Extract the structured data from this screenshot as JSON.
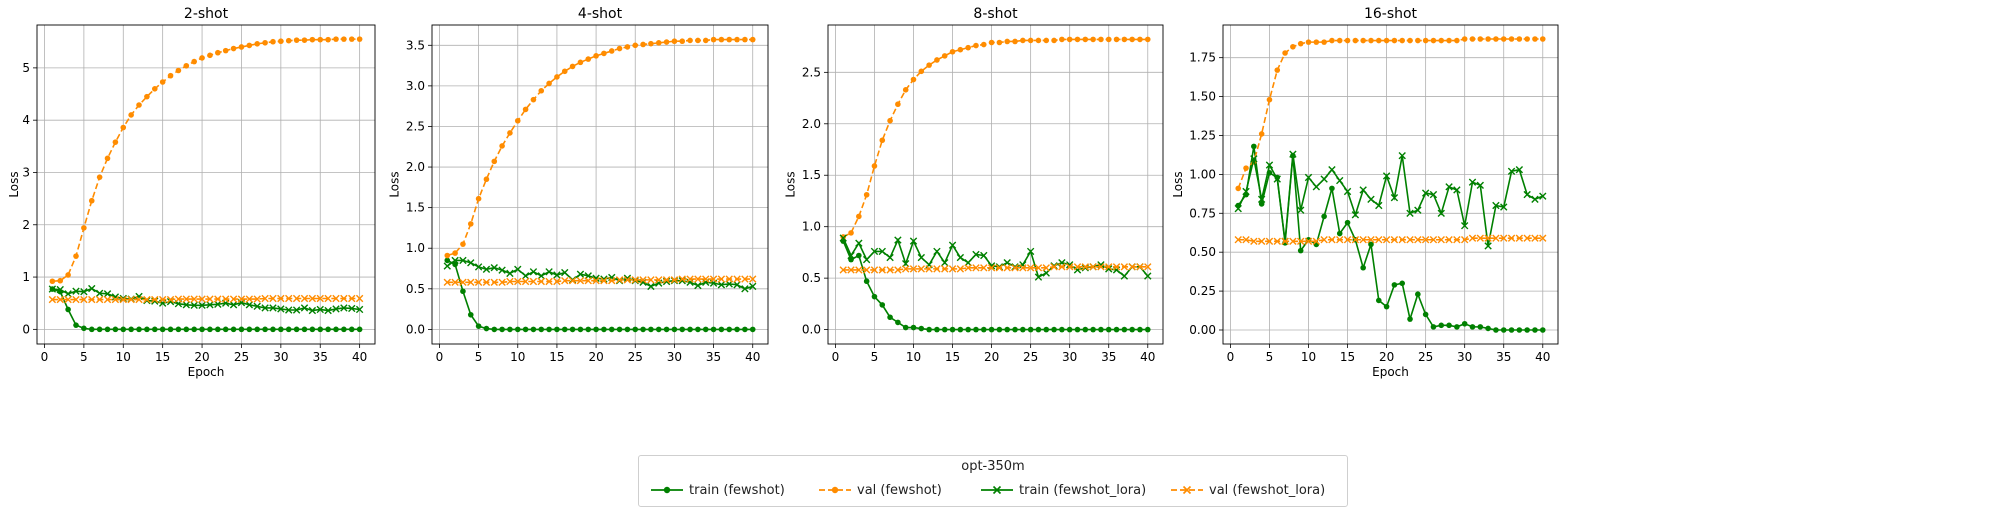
{
  "legend": {
    "title": "opt-350m",
    "entries": [
      {
        "label": "train (fewshot)",
        "color": "#008000",
        "style": "solid",
        "marker": "circle"
      },
      {
        "label": "val (fewshot)",
        "color": "#ff8c00",
        "style": "dashed",
        "marker": "circle"
      },
      {
        "label": "train (fewshot_lora)",
        "color": "#008000",
        "style": "solid",
        "marker": "x"
      },
      {
        "label": "val (fewshot_lora)",
        "color": "#ff8c00",
        "style": "dashed",
        "marker": "x"
      }
    ],
    "placement": "bottom-center"
  },
  "chart_data": [
    {
      "type": "line",
      "title": "2-shot",
      "xlabel": "Epoch",
      "ylabel": "Loss",
      "xlim": [
        -0.95,
        41.95
      ],
      "ylim": [
        -0.28,
        5.82
      ],
      "xticks": [
        0,
        5,
        10,
        15,
        20,
        25,
        30,
        35,
        40
      ],
      "yticks": [
        0,
        1,
        2,
        3,
        4,
        5
      ],
      "grid": true,
      "x": [
        1,
        2,
        3,
        4,
        5,
        6,
        7,
        8,
        9,
        10,
        11,
        12,
        13,
        14,
        15,
        16,
        17,
        18,
        19,
        20,
        21,
        22,
        23,
        24,
        25,
        26,
        27,
        28,
        29,
        30,
        31,
        32,
        33,
        34,
        35,
        36,
        37,
        38,
        39,
        40
      ],
      "series": [
        {
          "name": "train (fewshot)",
          "values": [
            0.77,
            0.72,
            0.38,
            0.08,
            0.02,
            0,
            0,
            0,
            0,
            0,
            0,
            0,
            0,
            0,
            0,
            0,
            0,
            0,
            0,
            0,
            0,
            0,
            0,
            0,
            0,
            0,
            0,
            0,
            0,
            0,
            0,
            0,
            0,
            0,
            0,
            0,
            0,
            0,
            0,
            0
          ]
        },
        {
          "name": "val (fewshot)",
          "values": [
            0.92,
            0.93,
            1.04,
            1.4,
            1.94,
            2.46,
            2.91,
            3.27,
            3.58,
            3.86,
            4.1,
            4.29,
            4.45,
            4.6,
            4.73,
            4.85,
            4.95,
            5.04,
            5.12,
            5.19,
            5.24,
            5.29,
            5.33,
            5.37,
            5.4,
            5.43,
            5.46,
            5.48,
            5.5,
            5.51,
            5.52,
            5.53,
            5.53,
            5.54,
            5.54,
            5.54,
            5.55,
            5.55,
            5.55,
            5.55
          ]
        },
        {
          "name": "train (fewshot_lora)",
          "values": [
            0.77,
            0.76,
            0.68,
            0.73,
            0.72,
            0.78,
            0.69,
            0.68,
            0.62,
            0.59,
            0.58,
            0.63,
            0.55,
            0.54,
            0.5,
            0.53,
            0.49,
            0.47,
            0.46,
            0.46,
            0.47,
            0.48,
            0.5,
            0.47,
            0.51,
            0.47,
            0.44,
            0.41,
            0.41,
            0.39,
            0.37,
            0.37,
            0.41,
            0.36,
            0.38,
            0.36,
            0.39,
            0.41,
            0.4,
            0.38
          ]
        },
        {
          "name": "val (fewshot_lora)",
          "values": [
            0.57,
            0.57,
            0.57,
            0.57,
            0.57,
            0.57,
            0.57,
            0.57,
            0.57,
            0.57,
            0.57,
            0.57,
            0.57,
            0.57,
            0.57,
            0.57,
            0.58,
            0.58,
            0.58,
            0.58,
            0.58,
            0.58,
            0.58,
            0.58,
            0.58,
            0.58,
            0.58,
            0.59,
            0.59,
            0.59,
            0.59,
            0.59,
            0.59,
            0.59,
            0.59,
            0.59,
            0.59,
            0.59,
            0.59,
            0.59
          ]
        }
      ]
    },
    {
      "type": "line",
      "title": "4-shot",
      "xlabel": "",
      "ylabel": "Loss",
      "xlim": [
        -0.95,
        41.95
      ],
      "ylim": [
        -0.18,
        3.75
      ],
      "xticks": [
        0,
        5,
        10,
        15,
        20,
        25,
        30,
        35,
        40
      ],
      "yticks": [
        0.0,
        0.5,
        1.0,
        1.5,
        2.0,
        2.5,
        3.0,
        3.5
      ],
      "grid": true,
      "x": [
        1,
        2,
        3,
        4,
        5,
        6,
        7,
        8,
        9,
        10,
        11,
        12,
        13,
        14,
        15,
        16,
        17,
        18,
        19,
        20,
        21,
        22,
        23,
        24,
        25,
        26,
        27,
        28,
        29,
        30,
        31,
        32,
        33,
        34,
        35,
        36,
        37,
        38,
        39,
        40
      ],
      "series": [
        {
          "name": "train (fewshot)",
          "values": [
            0.85,
            0.8,
            0.47,
            0.18,
            0.04,
            0.01,
            0,
            0,
            0,
            0,
            0,
            0,
            0,
            0,
            0,
            0,
            0,
            0,
            0,
            0,
            0,
            0,
            0,
            0,
            0,
            0,
            0,
            0,
            0,
            0,
            0,
            0,
            0,
            0,
            0,
            0,
            0,
            0,
            0,
            0
          ]
        },
        {
          "name": "val (fewshot)",
          "values": [
            0.91,
            0.94,
            1.05,
            1.3,
            1.61,
            1.85,
            2.07,
            2.26,
            2.42,
            2.57,
            2.71,
            2.83,
            2.94,
            3.03,
            3.11,
            3.18,
            3.24,
            3.29,
            3.33,
            3.37,
            3.4,
            3.43,
            3.46,
            3.48,
            3.5,
            3.51,
            3.52,
            3.53,
            3.54,
            3.55,
            3.55,
            3.56,
            3.56,
            3.56,
            3.57,
            3.57,
            3.57,
            3.57,
            3.57,
            3.57
          ]
        },
        {
          "name": "train (fewshot_lora)",
          "values": [
            0.78,
            0.85,
            0.85,
            0.82,
            0.77,
            0.74,
            0.76,
            0.73,
            0.69,
            0.74,
            0.66,
            0.71,
            0.66,
            0.71,
            0.67,
            0.7,
            0.61,
            0.68,
            0.66,
            0.63,
            0.62,
            0.64,
            0.6,
            0.63,
            0.6,
            0.58,
            0.53,
            0.57,
            0.59,
            0.6,
            0.6,
            0.58,
            0.54,
            0.58,
            0.57,
            0.55,
            0.56,
            0.55,
            0.5,
            0.53
          ]
        },
        {
          "name": "val (fewshot_lora)",
          "values": [
            0.58,
            0.58,
            0.58,
            0.58,
            0.58,
            0.58,
            0.58,
            0.58,
            0.59,
            0.59,
            0.59,
            0.59,
            0.59,
            0.59,
            0.59,
            0.6,
            0.6,
            0.6,
            0.6,
            0.6,
            0.6,
            0.6,
            0.61,
            0.61,
            0.61,
            0.61,
            0.61,
            0.61,
            0.61,
            0.61,
            0.62,
            0.62,
            0.62,
            0.62,
            0.62,
            0.62,
            0.62,
            0.62,
            0.62,
            0.62
          ]
        }
      ]
    },
    {
      "type": "line",
      "title": "8-shot",
      "xlabel": "",
      "ylabel": "Loss",
      "xlim": [
        -0.95,
        41.95
      ],
      "ylim": [
        -0.14,
        2.96
      ],
      "xticks": [
        0,
        5,
        10,
        15,
        20,
        25,
        30,
        35,
        40
      ],
      "yticks": [
        0.0,
        0.5,
        1.0,
        1.5,
        2.0,
        2.5
      ],
      "grid": true,
      "x": [
        1,
        2,
        3,
        4,
        5,
        6,
        7,
        8,
        9,
        10,
        11,
        12,
        13,
        14,
        15,
        16,
        17,
        18,
        19,
        20,
        21,
        22,
        23,
        24,
        25,
        26,
        27,
        28,
        29,
        30,
        31,
        32,
        33,
        34,
        35,
        36,
        37,
        38,
        39,
        40
      ],
      "series": [
        {
          "name": "train (fewshot)",
          "values": [
            0.86,
            0.68,
            0.72,
            0.47,
            0.32,
            0.24,
            0.12,
            0.07,
            0.02,
            0.02,
            0.01,
            0,
            0,
            0,
            0,
            0,
            0,
            0,
            0,
            0,
            0,
            0,
            0,
            0,
            0,
            0,
            0,
            0,
            0,
            0,
            0,
            0,
            0,
            0,
            0,
            0,
            0,
            0,
            0,
            0
          ]
        },
        {
          "name": "val (fewshot)",
          "values": [
            0.9,
            0.94,
            1.1,
            1.31,
            1.59,
            1.84,
            2.03,
            2.19,
            2.33,
            2.43,
            2.51,
            2.57,
            2.62,
            2.66,
            2.7,
            2.72,
            2.74,
            2.76,
            2.77,
            2.79,
            2.79,
            2.8,
            2.8,
            2.81,
            2.81,
            2.81,
            2.81,
            2.81,
            2.82,
            2.82,
            2.82,
            2.82,
            2.82,
            2.82,
            2.82,
            2.82,
            2.82,
            2.82,
            2.82,
            2.82
          ]
        },
        {
          "name": "train (fewshot_lora)",
          "values": [
            0.89,
            0.72,
            0.84,
            0.68,
            0.76,
            0.76,
            0.7,
            0.87,
            0.64,
            0.86,
            0.7,
            0.63,
            0.76,
            0.65,
            0.82,
            0.7,
            0.65,
            0.73,
            0.72,
            0.62,
            0.61,
            0.65,
            0.61,
            0.63,
            0.76,
            0.51,
            0.55,
            0.62,
            0.65,
            0.63,
            0.58,
            0.6,
            0.61,
            0.63,
            0.59,
            0.58,
            0.52,
            0.61,
            0.61,
            0.52
          ]
        },
        {
          "name": "val (fewshot_lora)",
          "values": [
            0.58,
            0.58,
            0.58,
            0.58,
            0.58,
            0.58,
            0.58,
            0.58,
            0.59,
            0.59,
            0.59,
            0.59,
            0.59,
            0.59,
            0.59,
            0.59,
            0.6,
            0.6,
            0.6,
            0.6,
            0.6,
            0.6,
            0.6,
            0.6,
            0.6,
            0.6,
            0.6,
            0.61,
            0.61,
            0.61,
            0.61,
            0.61,
            0.61,
            0.61,
            0.61,
            0.61,
            0.61,
            0.61,
            0.61,
            0.61
          ]
        }
      ]
    },
    {
      "type": "line",
      "title": "16-shot",
      "xlabel": "Epoch",
      "ylabel": "Loss",
      "xlim": [
        -0.95,
        41.95
      ],
      "ylim": [
        -0.09,
        1.96
      ],
      "xticks": [
        0,
        5,
        10,
        15,
        20,
        25,
        30,
        35,
        40
      ],
      "yticks": [
        0.0,
        0.25,
        0.5,
        0.75,
        1.0,
        1.25,
        1.5,
        1.75
      ],
      "grid": true,
      "x": [
        1,
        2,
        3,
        4,
        5,
        6,
        7,
        8,
        9,
        10,
        11,
        12,
        13,
        14,
        15,
        16,
        17,
        18,
        19,
        20,
        21,
        22,
        23,
        24,
        25,
        26,
        27,
        28,
        29,
        30,
        31,
        32,
        33,
        34,
        35,
        36,
        37,
        38,
        39,
        40
      ],
      "series": [
        {
          "name": "train (fewshot)",
          "values": [
            0.8,
            0.87,
            1.18,
            0.81,
            1.01,
            0.98,
            0.56,
            1.12,
            0.51,
            0.58,
            0.55,
            0.73,
            0.91,
            0.62,
            0.69,
            0.58,
            0.4,
            0.55,
            0.19,
            0.15,
            0.29,
            0.3,
            0.07,
            0.23,
            0.1,
            0.02,
            0.03,
            0.03,
            0.02,
            0.04,
            0.02,
            0.02,
            0.01,
            0,
            0,
            0,
            0,
            0,
            0,
            0
          ]
        },
        {
          "name": "val (fewshot)",
          "values": [
            0.91,
            1.04,
            1.08,
            1.26,
            1.48,
            1.67,
            1.78,
            1.82,
            1.84,
            1.85,
            1.85,
            1.85,
            1.86,
            1.86,
            1.86,
            1.86,
            1.86,
            1.86,
            1.86,
            1.86,
            1.86,
            1.86,
            1.86,
            1.86,
            1.86,
            1.86,
            1.86,
            1.86,
            1.86,
            1.87,
            1.87,
            1.87,
            1.87,
            1.87,
            1.87,
            1.87,
            1.87,
            1.87,
            1.87,
            1.87
          ]
        },
        {
          "name": "train (fewshot_lora)",
          "values": [
            0.78,
            0.89,
            1.1,
            0.84,
            1.06,
            0.97,
            0.57,
            1.13,
            0.77,
            0.98,
            0.92,
            0.97,
            1.03,
            0.96,
            0.89,
            0.74,
            0.9,
            0.84,
            0.8,
            0.99,
            0.85,
            1.12,
            0.75,
            0.77,
            0.88,
            0.87,
            0.75,
            0.92,
            0.9,
            0.67,
            0.95,
            0.93,
            0.54,
            0.8,
            0.79,
            1.02,
            1.03,
            0.87,
            0.84,
            0.86
          ]
        },
        {
          "name": "val (fewshot_lora)",
          "values": [
            0.58,
            0.58,
            0.57,
            0.57,
            0.57,
            0.57,
            0.57,
            0.57,
            0.57,
            0.57,
            0.57,
            0.58,
            0.58,
            0.58,
            0.58,
            0.58,
            0.58,
            0.58,
            0.58,
            0.58,
            0.58,
            0.58,
            0.58,
            0.58,
            0.58,
            0.58,
            0.58,
            0.58,
            0.58,
            0.58,
            0.59,
            0.59,
            0.59,
            0.59,
            0.59,
            0.59,
            0.59,
            0.59,
            0.59,
            0.59
          ]
        }
      ]
    }
  ]
}
